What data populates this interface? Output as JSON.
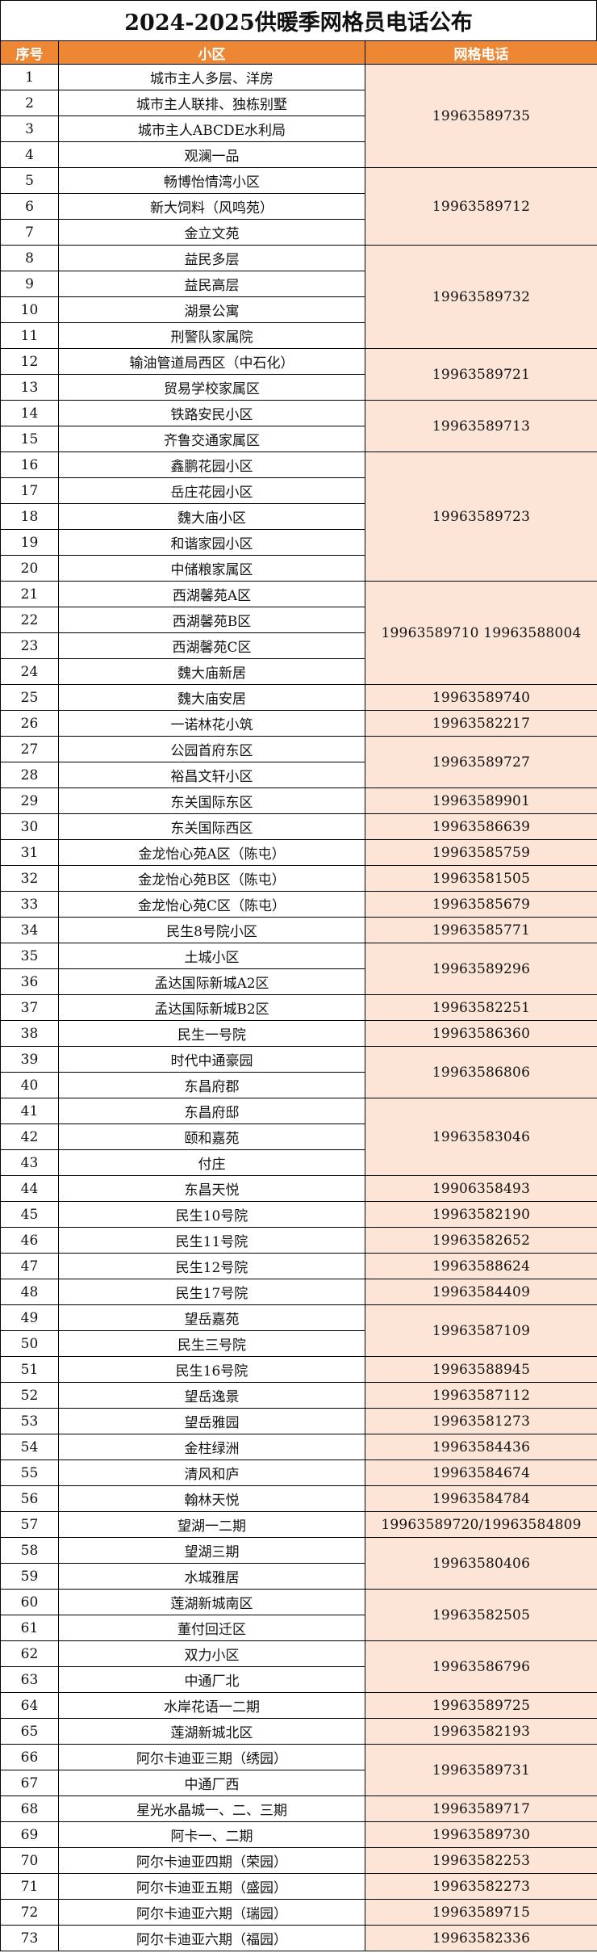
{
  "title": "2024-2025供暖季网格员电话公布",
  "colors": {
    "header_bg": "#ED8733",
    "phone_bg": "#FCE4D6"
  },
  "headers": [
    "序号",
    "小区",
    "网格电话"
  ],
  "rows": [
    {
      "no": "1",
      "name": "城市主人多层、洋房"
    },
    {
      "no": "2",
      "name": "城市主人联排、独栋别墅"
    },
    {
      "no": "3",
      "name": "城市主人ABCDE水利局"
    },
    {
      "no": "4",
      "name": "观澜一品"
    },
    {
      "no": "5",
      "name": "畅博怡情湾小区"
    },
    {
      "no": "6",
      "name": "新大饲料（风鸣苑）"
    },
    {
      "no": "7",
      "name": "金立文苑"
    },
    {
      "no": "8",
      "name": "益民多层"
    },
    {
      "no": "9",
      "name": "益民高层"
    },
    {
      "no": "10",
      "name": "湖景公寓"
    },
    {
      "no": "11",
      "name": "刑警队家属院"
    },
    {
      "no": "12",
      "name": "输油管道局西区（中石化）"
    },
    {
      "no": "13",
      "name": "贸易学校家属区"
    },
    {
      "no": "14",
      "name": "铁路安民小区"
    },
    {
      "no": "15",
      "name": "齐鲁交通家属区"
    },
    {
      "no": "16",
      "name": "鑫鹏花园小区"
    },
    {
      "no": "17",
      "name": "岳庄花园小区"
    },
    {
      "no": "18",
      "name": "魏大庙小区"
    },
    {
      "no": "19",
      "name": "和谐家园小区"
    },
    {
      "no": "20",
      "name": "中储粮家属区"
    },
    {
      "no": "21",
      "name": "西湖馨苑A区"
    },
    {
      "no": "22",
      "name": "西湖馨苑B区"
    },
    {
      "no": "23",
      "name": "西湖馨苑C区"
    },
    {
      "no": "24",
      "name": "魏大庙新居"
    },
    {
      "no": "25",
      "name": "魏大庙安居"
    },
    {
      "no": "26",
      "name": "一诺林花小筑"
    },
    {
      "no": "27",
      "name": "公园首府东区"
    },
    {
      "no": "28",
      "name": "裕昌文轩小区"
    },
    {
      "no": "29",
      "name": "东关国际东区"
    },
    {
      "no": "30",
      "name": "东关国际西区"
    },
    {
      "no": "31",
      "name": "金龙怡心苑A区（陈屯）"
    },
    {
      "no": "32",
      "name": "金龙怡心苑B区（陈屯）"
    },
    {
      "no": "33",
      "name": "金龙怡心苑C区（陈屯）"
    },
    {
      "no": "34",
      "name": "民生8号院小区"
    },
    {
      "no": "35",
      "name": "土城小区"
    },
    {
      "no": "36",
      "name": "孟达国际新城A2区"
    },
    {
      "no": "37",
      "name": "孟达国际新城B2区"
    },
    {
      "no": "38",
      "name": "民生一号院"
    },
    {
      "no": "39",
      "name": "时代中通豪园"
    },
    {
      "no": "40",
      "name": "东昌府郡"
    },
    {
      "no": "41",
      "name": "东昌府邸"
    },
    {
      "no": "42",
      "name": "颐和嘉苑"
    },
    {
      "no": "43",
      "name": "付庄"
    },
    {
      "no": "44",
      "name": "东昌天悦"
    },
    {
      "no": "45",
      "name": "民生10号院"
    },
    {
      "no": "46",
      "name": "民生11号院"
    },
    {
      "no": "47",
      "name": "民生12号院"
    },
    {
      "no": "48",
      "name": "民生17号院"
    },
    {
      "no": "49",
      "name": "望岳嘉苑"
    },
    {
      "no": "50",
      "name": "民生三号院"
    },
    {
      "no": "51",
      "name": "民生16号院"
    },
    {
      "no": "52",
      "name": "望岳逸景"
    },
    {
      "no": "53",
      "name": "望岳雅园"
    },
    {
      "no": "54",
      "name": "金柱绿洲"
    },
    {
      "no": "55",
      "name": "清风和庐"
    },
    {
      "no": "56",
      "name": "翰林天悦"
    },
    {
      "no": "57",
      "name": "望湖一二期"
    },
    {
      "no": "58",
      "name": "望湖三期"
    },
    {
      "no": "59",
      "name": "水城雅居"
    },
    {
      "no": "60",
      "name": "莲湖新城南区"
    },
    {
      "no": "61",
      "name": "董付回迁区"
    },
    {
      "no": "62",
      "name": "双力小区"
    },
    {
      "no": "63",
      "name": "中通厂北"
    },
    {
      "no": "64",
      "name": "水岸花语一二期"
    },
    {
      "no": "65",
      "name": "莲湖新城北区"
    },
    {
      "no": "66",
      "name": "阿尔卡迪亚三期（绣园）"
    },
    {
      "no": "67",
      "name": "中通厂西"
    },
    {
      "no": "68",
      "name": "星光水晶城一、二、三期"
    },
    {
      "no": "69",
      "name": "阿卡一、二期"
    },
    {
      "no": "70",
      "name": "阿尔卡迪亚四期（荣园）"
    },
    {
      "no": "71",
      "name": "阿尔卡迪亚五期（盛园）"
    },
    {
      "no": "72",
      "name": "阿尔卡迪亚六期（瑞园）"
    },
    {
      "no": "73",
      "name": "阿尔卡迪亚六期（福园）"
    }
  ],
  "phones": [
    {
      "phone": "19963589735",
      "span": 4
    },
    {
      "phone": "19963589712",
      "span": 3
    },
    {
      "phone": "19963589732",
      "span": 4
    },
    {
      "phone": "19963589721",
      "span": 2
    },
    {
      "phone": "19963589713",
      "span": 2
    },
    {
      "phone": "19963589723",
      "span": 5
    },
    {
      "phone": "19963589710  19963588004",
      "span": 4
    },
    {
      "phone": "19963589740",
      "span": 1
    },
    {
      "phone": "19963582217",
      "span": 1
    },
    {
      "phone": "19963589727",
      "span": 2
    },
    {
      "phone": "19963589901",
      "span": 1
    },
    {
      "phone": "19963586639",
      "span": 1
    },
    {
      "phone": "19963585759",
      "span": 1
    },
    {
      "phone": "19963581505",
      "span": 1
    },
    {
      "phone": "19963585679",
      "span": 1
    },
    {
      "phone": "19963585771",
      "span": 1
    },
    {
      "phone": "19963589296",
      "span": 2
    },
    {
      "phone": "19963582251",
      "span": 1
    },
    {
      "phone": "19963586360",
      "span": 1
    },
    {
      "phone": "19963586806",
      "span": 2
    },
    {
      "phone": "19963583046",
      "span": 3
    },
    {
      "phone": "19906358493",
      "span": 1
    },
    {
      "phone": "19963582190",
      "span": 1
    },
    {
      "phone": "19963582652",
      "span": 1
    },
    {
      "phone": "19963588624",
      "span": 1
    },
    {
      "phone": "19963584409",
      "span": 1
    },
    {
      "phone": "19963587109",
      "span": 2
    },
    {
      "phone": "19963588945",
      "span": 1
    },
    {
      "phone": "19963587112",
      "span": 1
    },
    {
      "phone": "19963581273",
      "span": 1
    },
    {
      "phone": "19963584436",
      "span": 1
    },
    {
      "phone": "19963584674",
      "span": 1
    },
    {
      "phone": "19963584784",
      "span": 1
    },
    {
      "phone": "19963589720/19963584809",
      "span": 1
    },
    {
      "phone": "19963580406",
      "span": 2
    },
    {
      "phone": "19963582505",
      "span": 2
    },
    {
      "phone": "19963586796",
      "span": 2
    },
    {
      "phone": "19963589725",
      "span": 1
    },
    {
      "phone": "19963582193",
      "span": 1
    },
    {
      "phone": "19963589731",
      "span": 2
    },
    {
      "phone": "19963589717",
      "span": 1
    },
    {
      "phone": "19963589730",
      "span": 1
    },
    {
      "phone": "19963582253",
      "span": 1
    },
    {
      "phone": "19963582273",
      "span": 1
    },
    {
      "phone": "19963589715",
      "span": 1
    },
    {
      "phone": "19963582336",
      "span": 1
    }
  ]
}
